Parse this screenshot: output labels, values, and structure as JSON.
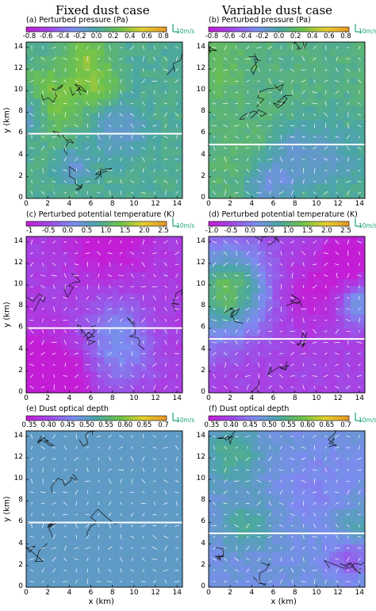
{
  "columns": {
    "left": "Fixed dust case",
    "right": "Variable dust case"
  },
  "reference_vector": "10m/s",
  "colors": {
    "magenta": "#c41dd6",
    "purple": "#a04ae6",
    "blue": "#7c8cf0",
    "teal": "#4aa6a6",
    "green": "#6dc24a",
    "yellow": "#e3cf30",
    "orange": "#e5952a"
  },
  "chart_data": [
    {
      "type": "heatmap",
      "panel": "a",
      "title": "(a)  Perturbed pressure (Pa)",
      "colorbar_ticks": [
        "-0.8",
        "-0.6",
        "-0.4",
        "-0.2",
        "0.0",
        "0.2",
        "0.4",
        "0.6",
        "0.8"
      ],
      "clim": [
        -0.8,
        0.8
      ],
      "xlim": [
        0,
        14.5
      ],
      "ylim": [
        0,
        14.5
      ],
      "xticks": [
        "0",
        "2",
        "4",
        "6",
        "8",
        "10",
        "12",
        "14"
      ],
      "yticks": [
        "0",
        "2",
        "4",
        "6",
        "8",
        "10",
        "12",
        "14"
      ],
      "ylabel": "y (km)",
      "xlabel": "",
      "white_line_y": 6,
      "base_value": 0.05
    },
    {
      "type": "heatmap",
      "panel": "b",
      "title": "(b)  Perturbed pressure (Pa)",
      "colorbar_ticks": [
        "-0.8",
        "-0.6",
        "-0.4",
        "-0.2",
        "0.0",
        "0.2",
        "0.4",
        "0.6",
        "0.8"
      ],
      "clim": [
        -0.8,
        0.8
      ],
      "xlim": [
        0,
        14.5
      ],
      "ylim": [
        0,
        14.5
      ],
      "xticks": [
        "0",
        "2",
        "4",
        "6",
        "8",
        "10",
        "12",
        "14"
      ],
      "yticks": [
        "0",
        "2",
        "4",
        "6",
        "8",
        "10",
        "12",
        "14"
      ],
      "ylabel": "",
      "xlabel": "",
      "white_line_y": 5,
      "base_value": 0.1
    },
    {
      "type": "heatmap",
      "panel": "c",
      "title": "(c)  Perturbed potential temperature (K)",
      "colorbar_ticks": [
        "-1",
        "-0.5",
        "0.0",
        "0.5",
        "1.0",
        "1.5",
        "2.0",
        "2.5"
      ],
      "clim": [
        -1,
        2.5
      ],
      "xlim": [
        0,
        14.5
      ],
      "ylim": [
        0,
        14.5
      ],
      "xticks": [
        "0",
        "2",
        "4",
        "6",
        "8",
        "10",
        "12",
        "14"
      ],
      "yticks": [
        "0",
        "2",
        "4",
        "6",
        "8",
        "10",
        "12",
        "14"
      ],
      "ylabel": "y (km)",
      "xlabel": "",
      "white_line_y": 6,
      "base_value": -0.6
    },
    {
      "type": "heatmap",
      "panel": "d",
      "title": "(d)  Perturbed potential temperature (K)",
      "colorbar_ticks": [
        "-1.0",
        "-0.5",
        "0.0",
        "0.5",
        "1.0",
        "1.5",
        "2.0",
        "2.5"
      ],
      "clim": [
        -1,
        2.5
      ],
      "xlim": [
        0,
        14.5
      ],
      "ylim": [
        0,
        14.5
      ],
      "xticks": [
        "0",
        "2",
        "4",
        "6",
        "8",
        "10",
        "12",
        "14"
      ],
      "yticks": [
        "0",
        "2",
        "4",
        "6",
        "8",
        "10",
        "12",
        "14"
      ],
      "ylabel": "",
      "xlabel": "",
      "white_line_y": 5,
      "base_value": -0.5
    },
    {
      "type": "heatmap",
      "panel": "e",
      "title": "(e)  Dust optical depth",
      "colorbar_ticks": [
        "0.35",
        "0.40",
        "0.45",
        "0.50",
        "0.55",
        "0.60",
        "0.65",
        "0.7"
      ],
      "clim": [
        0.35,
        0.7
      ],
      "xlim": [
        0,
        14.5
      ],
      "ylim": [
        0,
        14.5
      ],
      "xticks": [
        "0",
        "2",
        "4",
        "6",
        "8",
        "10",
        "12",
        "14"
      ],
      "yticks": [
        "0",
        "2",
        "4",
        "6",
        "8",
        "10",
        "12",
        "14"
      ],
      "ylabel": "y (km)",
      "xlabel": "x (km)",
      "white_line_y": 6,
      "base_value": 0.5
    },
    {
      "type": "heatmap",
      "panel": "f",
      "title": "(f)  Dust optical depth",
      "colorbar_ticks": [
        "0.35",
        "0.40",
        "0.45",
        "0.50",
        "0.55",
        "0.60",
        "0.65",
        "0.7"
      ],
      "clim": [
        0.35,
        0.7
      ],
      "xlim": [
        0,
        14.5
      ],
      "ylim": [
        0,
        14.5
      ],
      "xticks": [
        "0",
        "2",
        "4",
        "6",
        "8",
        "10",
        "12",
        "14"
      ],
      "yticks": [
        "0",
        "2",
        "4",
        "6",
        "8",
        "10",
        "12",
        "14"
      ],
      "ylabel": "",
      "xlabel": "x (km)",
      "white_line_y": 5,
      "base_value": 0.48
    }
  ]
}
